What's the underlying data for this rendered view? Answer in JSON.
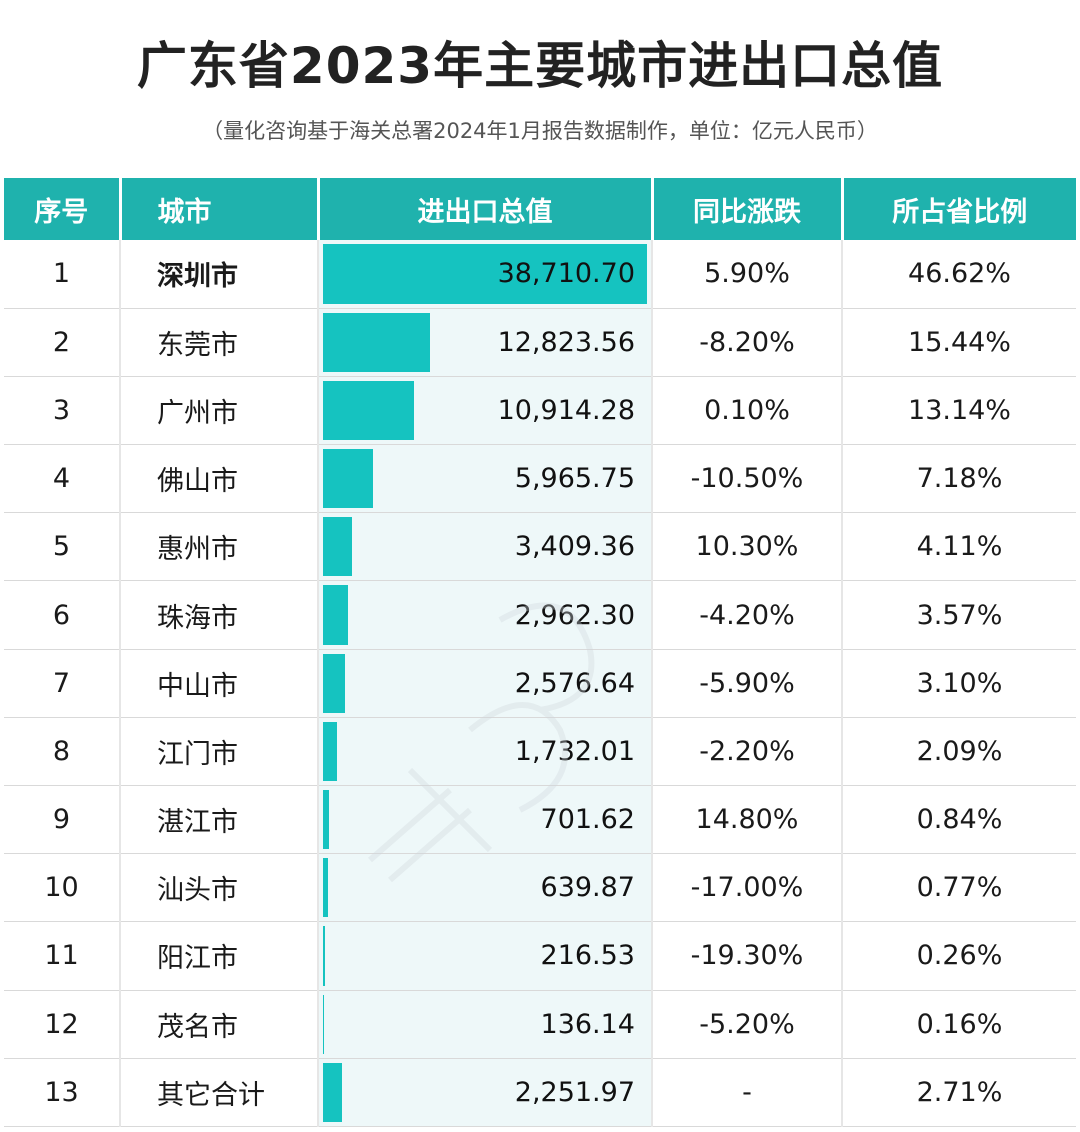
{
  "title": "广东省2023年主要城市进出口总值",
  "subtitle": "（量化咨询基于海关总署2024年1月报告数据制作，单位：亿元人民币）",
  "colors": {
    "header": "#1fb2ad",
    "bar": "#15c3c0",
    "bar_bg": "#eef8f9"
  },
  "headers": {
    "index": "序号",
    "city": "城市",
    "total": "进出口总值",
    "yoy": "同比涨跌",
    "share": "所占省比例"
  },
  "chart_data": {
    "type": "table",
    "title": "广东省2023年主要城市进出口总值",
    "columns": [
      "序号",
      "城市",
      "进出口总值",
      "同比涨跌",
      "所占省比例"
    ],
    "rows": [
      {
        "index": "1",
        "city": "深圳市",
        "total": "38,710.70",
        "value": 38710.7,
        "yoy": "5.90%",
        "share": "46.62%"
      },
      {
        "index": "2",
        "city": "东莞市",
        "total": "12,823.56",
        "value": 12823.56,
        "yoy": "-8.20%",
        "share": "15.44%"
      },
      {
        "index": "3",
        "city": "广州市",
        "total": "10,914.28",
        "value": 10914.28,
        "yoy": "0.10%",
        "share": "13.14%"
      },
      {
        "index": "4",
        "city": "佛山市",
        "total": "5,965.75",
        "value": 5965.75,
        "yoy": "-10.50%",
        "share": "7.18%"
      },
      {
        "index": "5",
        "city": "惠州市",
        "total": "3,409.36",
        "value": 3409.36,
        "yoy": "10.30%",
        "share": "4.11%"
      },
      {
        "index": "6",
        "city": "珠海市",
        "total": "2,962.30",
        "value": 2962.3,
        "yoy": "-4.20%",
        "share": "3.57%"
      },
      {
        "index": "7",
        "city": "中山市",
        "total": "2,576.64",
        "value": 2576.64,
        "yoy": "-5.90%",
        "share": "3.10%"
      },
      {
        "index": "8",
        "city": "江门市",
        "total": "1,732.01",
        "value": 1732.01,
        "yoy": "-2.20%",
        "share": "2.09%"
      },
      {
        "index": "9",
        "city": "湛江市",
        "total": "701.62",
        "value": 701.62,
        "yoy": "14.80%",
        "share": "0.84%"
      },
      {
        "index": "10",
        "city": "汕头市",
        "total": "639.87",
        "value": 639.87,
        "yoy": "-17.00%",
        "share": "0.77%"
      },
      {
        "index": "11",
        "city": "阳江市",
        "total": "216.53",
        "value": 216.53,
        "yoy": "-19.30%",
        "share": "0.26%"
      },
      {
        "index": "12",
        "city": "茂名市",
        "total": "136.14",
        "value": 136.14,
        "yoy": "-5.20%",
        "share": "0.16%"
      },
      {
        "index": "13",
        "city": "其它合计",
        "total": "2,251.97",
        "value": 2251.97,
        "yoy": "-",
        "share": "2.71%"
      }
    ],
    "bar_max": 38710.7
  }
}
